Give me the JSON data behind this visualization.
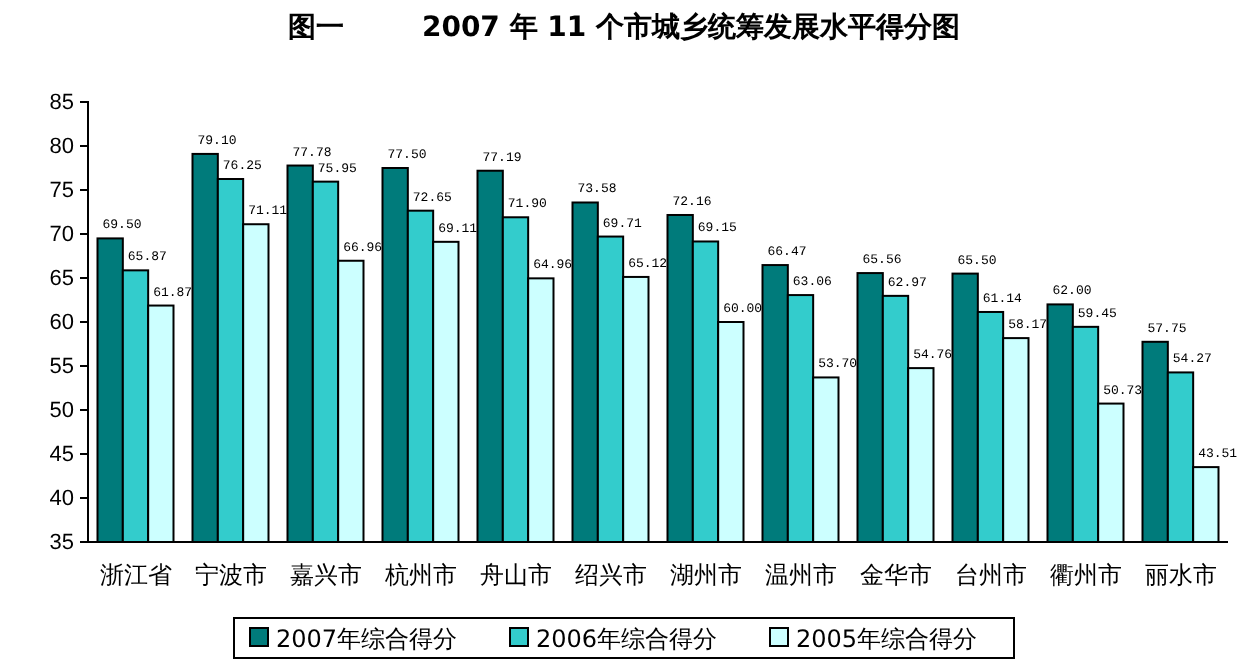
{
  "chart_data": {
    "type": "bar",
    "title": "图一        2007 年 11 个市城乡统筹发展水平得分图",
    "categories": [
      "浙江省",
      "宁波市",
      "嘉兴市",
      "杭州市",
      "舟山市",
      "绍兴市",
      "湖州市",
      "温州市",
      "金华市",
      "台州市",
      "衢州市",
      "丽水市"
    ],
    "series": [
      {
        "name": "2007年综合得分",
        "color": "#007b7b",
        "values": [
          69.5,
          79.1,
          77.78,
          77.5,
          77.19,
          73.58,
          72.16,
          66.47,
          65.56,
          65.5,
          62.0,
          57.75
        ],
        "value_labels": [
          "69.50",
          "79.10",
          "77.78",
          "77.50",
          "77.19",
          "73.58",
          "72.16",
          "66.47",
          "65.56",
          "65.50",
          "62.00",
          "57.75"
        ]
      },
      {
        "name": "2006年综合得分",
        "color": "#33cccc",
        "values": [
          65.87,
          76.25,
          75.95,
          72.65,
          71.9,
          69.71,
          69.15,
          63.06,
          62.97,
          61.14,
          59.45,
          54.27
        ],
        "value_labels": [
          "65.87",
          "76.25",
          "75.95",
          "72.65",
          "71.90",
          "69.71",
          "69.15",
          "63.06",
          "62.97",
          "61.14",
          "59.45",
          "54.27"
        ]
      },
      {
        "name": "2005年综合得分",
        "color": "#ccffff",
        "values": [
          61.87,
          71.11,
          66.96,
          69.11,
          64.96,
          65.12,
          60.0,
          53.7,
          54.76,
          58.17,
          50.73,
          43.51
        ],
        "value_labels": [
          "61.87",
          "71.11",
          "66.96",
          "69.11",
          "64.96",
          "65.12",
          "60.00",
          "53.70",
          "54.76",
          "58.17",
          "50.73",
          "43.51"
        ]
      }
    ],
    "ylim": [
      35,
      85
    ],
    "yticks": [
      35,
      40,
      45,
      50,
      55,
      60,
      65,
      70,
      75,
      80,
      85
    ],
    "grid": false,
    "legend": "bottom"
  }
}
